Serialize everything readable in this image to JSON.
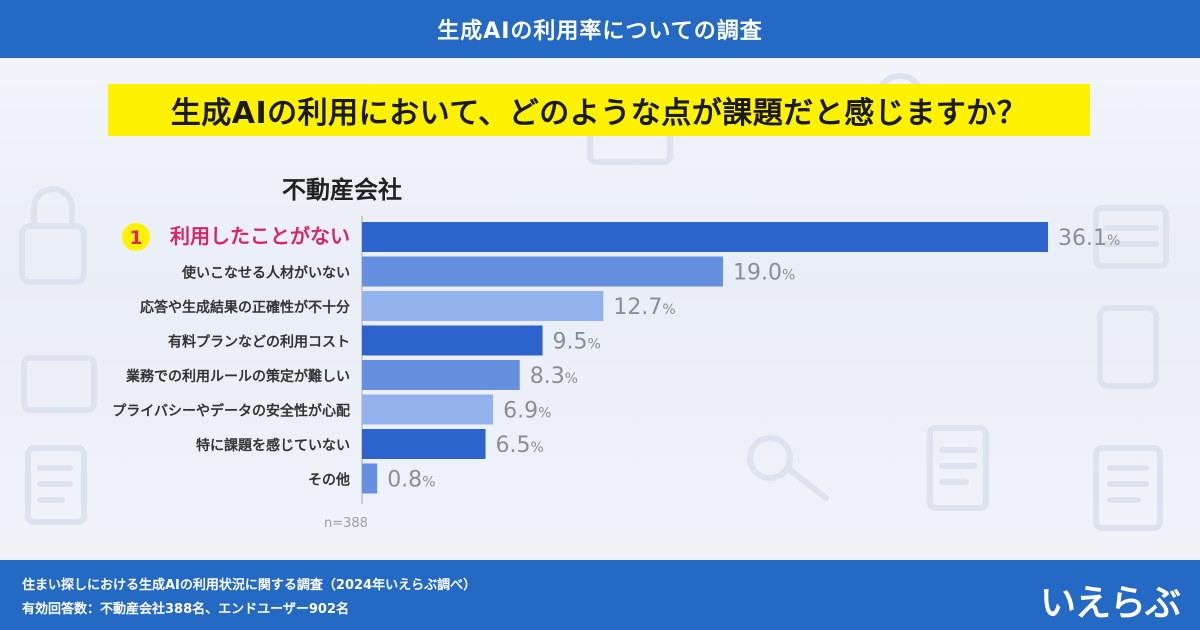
{
  "header": {
    "title": "生成AIの利用率についての調査"
  },
  "question": {
    "text": "生成AIの利用において、どのような点が課題だと感じますか？"
  },
  "group": {
    "title": "不動産会社"
  },
  "chart_data": {
    "type": "bar",
    "orientation": "horizontal",
    "title": "",
    "categories": [
      "利用したことがない",
      "使いこなせる人材がいない",
      "応答や生成結果の正確性が不十分",
      "有料プランなどの利用コスト",
      "業務での利用ルールの策定が難しい",
      "プライバシーやデータの安全性が心配",
      "特に課題を感じていない",
      "その他"
    ],
    "values": [
      36.1,
      19.0,
      12.7,
      9.5,
      8.3,
      6.9,
      6.5,
      0.8
    ],
    "value_labels": [
      "36.1",
      "19.0",
      "12.7",
      "9.5",
      "8.3",
      "6.9",
      "6.5",
      "0.8"
    ],
    "unit": "%",
    "rank_badge": "1",
    "colors": [
      "#2c63cc",
      "#6590e0",
      "#93b1ec",
      "#2c63cc",
      "#6590e0",
      "#93b1ec",
      "#2c63cc",
      "#6590e0"
    ],
    "highlight_color": "#d6266b",
    "badge_color": "#fff200",
    "value_label_color": "#8a8f96",
    "xlabel": "",
    "ylabel": "",
    "xlim": [
      0,
      36.1
    ]
  },
  "sample": {
    "n": "n=388"
  },
  "footer": {
    "line1": "住まい探しにおける生成AIの利用状況に関する調査（2024年いえらぶ調べ）",
    "line2": "有効回答数：不動産会社388名、エンドユーザー902名",
    "logo_text": "いえらぶ"
  }
}
